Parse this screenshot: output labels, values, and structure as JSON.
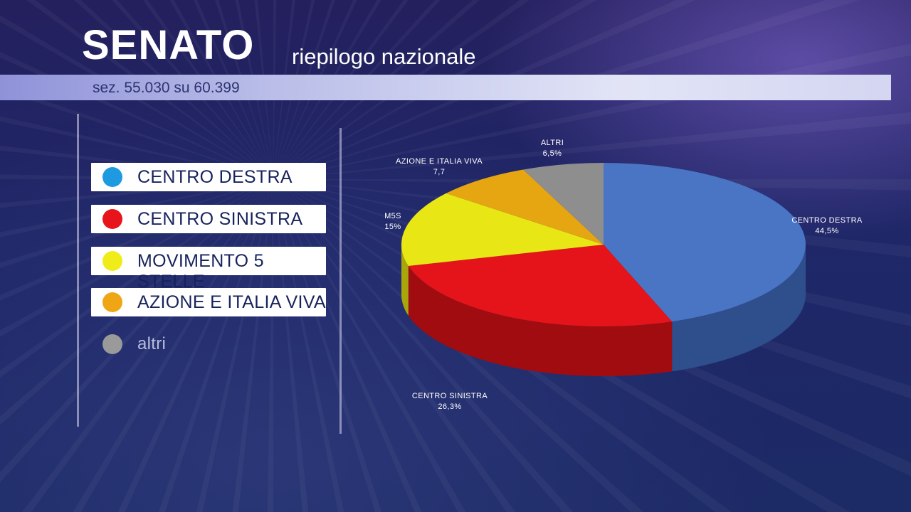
{
  "header": {
    "title": "SENATO",
    "subtitle": "riepilogo nazionale",
    "sections": "sez. 55.030 su 60.399"
  },
  "legend": {
    "items": [
      {
        "label": "CENTRO DESTRA",
        "color": "#1e9be0"
      },
      {
        "label": "CENTRO SINISTRA",
        "color": "#e8141c"
      },
      {
        "label": "MOVIMENTO 5 STELLE",
        "color": "#f0ec1a"
      },
      {
        "label": "AZIONE E ITALIA VIVA",
        "color": "#efa514"
      },
      {
        "label": "altri",
        "color": "#9a9a9a"
      }
    ]
  },
  "chart_data": {
    "type": "pie",
    "slices": [
      {
        "name": "CENTRO DESTRA",
        "value_label": "44,5%",
        "value": 44.5,
        "color": "#4a74c4",
        "side": "#2f4e8c"
      },
      {
        "name": "CENTRO SINISTRA",
        "value_label": "26,3%",
        "value": 26.3,
        "color": "#e5141a",
        "side": "#a00c10"
      },
      {
        "name": "M5S",
        "value_label": "15%",
        "value": 15,
        "color": "#e8e614",
        "side": "#a9a60c"
      },
      {
        "name": "AZIONE E ITALIA VIVA",
        "value_label": "7,7",
        "value": 7.7,
        "color": "#e6a612",
        "side": "#a5760a"
      },
      {
        "name": "ALTRI",
        "value_label": "6,5%",
        "value": 6.5,
        "color": "#8e8e8e",
        "side": "#5e5e5e"
      }
    ]
  }
}
